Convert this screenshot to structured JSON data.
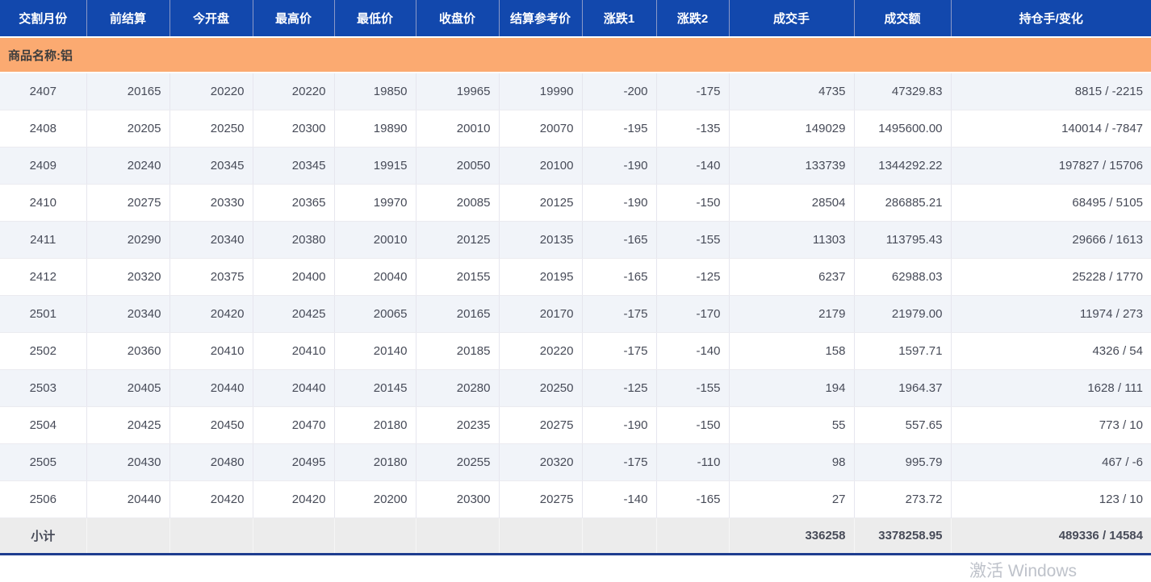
{
  "colors": {
    "header_bg": "#1248ad",
    "header_divider": "#8a99c8",
    "group_row_bg": "#fbaa71",
    "row_alt_bg": "#f1f4f9",
    "row_bg": "#ffffff",
    "subtotal_bg": "#ececec",
    "text": "#474b58",
    "header_text": "#ffffff",
    "bottom_border": "#1e3d8f",
    "grid_line": "#e6e6ee"
  },
  "table": {
    "columns": [
      "交割月份",
      "前结算",
      "今开盘",
      "最高价",
      "最低价",
      "收盘价",
      "结算参考价",
      "涨跌1",
      "涨跌2",
      "成交手",
      "成交额",
      "持仓手/变化"
    ],
    "group_label": "商品名称:铝",
    "rows": [
      [
        "2407",
        "20165",
        "20220",
        "20220",
        "19850",
        "19965",
        "19990",
        "-200",
        "-175",
        "4735",
        "47329.83",
        "8815 / -2215"
      ],
      [
        "2408",
        "20205",
        "20250",
        "20300",
        "19890",
        "20010",
        "20070",
        "-195",
        "-135",
        "149029",
        "1495600.00",
        "140014 / -7847"
      ],
      [
        "2409",
        "20240",
        "20345",
        "20345",
        "19915",
        "20050",
        "20100",
        "-190",
        "-140",
        "133739",
        "1344292.22",
        "197827 / 15706"
      ],
      [
        "2410",
        "20275",
        "20330",
        "20365",
        "19970",
        "20085",
        "20125",
        "-190",
        "-150",
        "28504",
        "286885.21",
        "68495 / 5105"
      ],
      [
        "2411",
        "20290",
        "20340",
        "20380",
        "20010",
        "20125",
        "20135",
        "-165",
        "-155",
        "11303",
        "113795.43",
        "29666 / 1613"
      ],
      [
        "2412",
        "20320",
        "20375",
        "20400",
        "20040",
        "20155",
        "20195",
        "-165",
        "-125",
        "6237",
        "62988.03",
        "25228 / 1770"
      ],
      [
        "2501",
        "20340",
        "20420",
        "20425",
        "20065",
        "20165",
        "20170",
        "-175",
        "-170",
        "2179",
        "21979.00",
        "11974 / 273"
      ],
      [
        "2502",
        "20360",
        "20410",
        "20410",
        "20140",
        "20185",
        "20220",
        "-175",
        "-140",
        "158",
        "1597.71",
        "4326 / 54"
      ],
      [
        "2503",
        "20405",
        "20440",
        "20440",
        "20145",
        "20280",
        "20250",
        "-125",
        "-155",
        "194",
        "1964.37",
        "1628 / 111"
      ],
      [
        "2504",
        "20425",
        "20450",
        "20470",
        "20180",
        "20235",
        "20275",
        "-190",
        "-150",
        "55",
        "557.65",
        "773 / 10"
      ],
      [
        "2505",
        "20430",
        "20480",
        "20495",
        "20180",
        "20255",
        "20320",
        "-175",
        "-110",
        "98",
        "995.79",
        "467 / -6"
      ],
      [
        "2506",
        "20440",
        "20420",
        "20420",
        "20200",
        "20300",
        "20275",
        "-140",
        "-165",
        "27",
        "273.72",
        "123 / 10"
      ]
    ],
    "subtotal": {
      "label": "小计",
      "volume": "336258",
      "turnover": "3378258.95",
      "open_interest": "489336 / 14584"
    }
  },
  "watermark": "激活 Windows"
}
